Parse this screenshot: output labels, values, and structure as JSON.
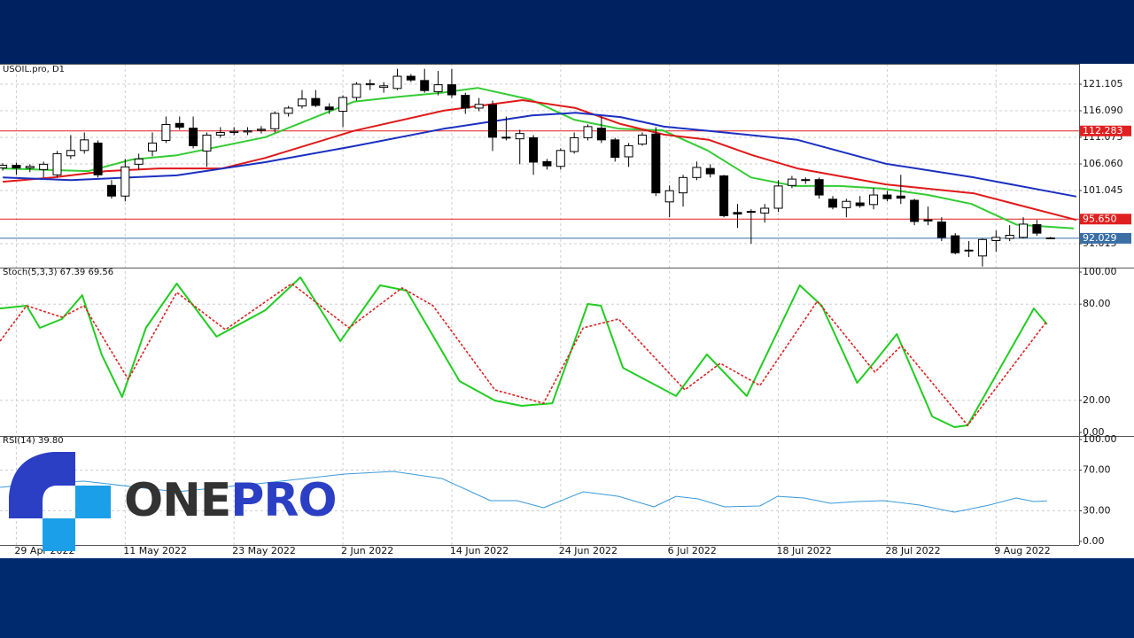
{
  "chart_data": {
    "type": "candlestick",
    "title": "USOIL.pro, D1",
    "categories": [
      null,
      "29 Apr 2022",
      null,
      null,
      null,
      null,
      null,
      null,
      null,
      "11 May 2022",
      null,
      null,
      null,
      null,
      null,
      null,
      null,
      "23 May 2022",
      null,
      null,
      null,
      null,
      null,
      null,
      null,
      "2 Jun 2022",
      null,
      null,
      null,
      null,
      null,
      null,
      null,
      "14 Jun 2022",
      null,
      null,
      null,
      null,
      null,
      null,
      null,
      "24 Jun 2022",
      null,
      null,
      null,
      null,
      null,
      null,
      null,
      "6 Jul 2022",
      null,
      null,
      null,
      null,
      null,
      null,
      null,
      "18 Jul 2022",
      null,
      null,
      null,
      null,
      null,
      null,
      null,
      "28 Jul 2022",
      null,
      null,
      null,
      null,
      null,
      null,
      null,
      "9 Aug 2022",
      null,
      null,
      null,
      null
    ],
    "open": [
      105.3,
      105.8,
      105.3,
      105.0,
      104.0,
      107.6,
      108.6,
      110.0,
      102.0,
      100.0,
      106.0,
      108.5,
      110.5,
      113.7,
      112.8,
      108.5,
      111.5,
      112.0,
      112.1,
      112.4,
      112.7,
      115.6,
      117.0,
      118.4,
      116.8,
      116.0,
      118.6,
      121.0,
      120.5,
      120.3,
      122.6,
      121.8,
      119.7,
      121.0,
      119.0,
      116.6,
      117.2,
      111.1,
      110.8,
      111.0,
      106.5,
      105.6,
      108.4,
      111.0,
      112.8,
      110.6,
      107.4,
      109.8,
      111.7,
      98.9,
      100.6,
      103.5,
      105.2,
      103.8,
      96.9,
      97.0,
      96.8,
      97.7,
      102.0,
      103.0,
      103.1,
      99.4,
      97.8,
      98.7,
      98.4,
      100.2,
      100.0,
      99.2,
      95.5,
      95.1,
      92.5,
      89.7,
      88.7,
      91.6,
      92.0,
      92.2,
      94.6,
      92.1
    ],
    "high": [
      106.2,
      106.3,
      106.0,
      106.5,
      108.5,
      111.5,
      112.0,
      110.5,
      103.0,
      107.0,
      108.0,
      112.0,
      115.0,
      115.0,
      115.0,
      112.0,
      113.0,
      113.0,
      113.0,
      113.2,
      116.0,
      117.0,
      120.0,
      120.0,
      117.5,
      119.0,
      121.5,
      122.0,
      121.5,
      124.0,
      123.0,
      124.0,
      123.6,
      124.0,
      119.5,
      118.5,
      118.0,
      115.0,
      112.5,
      111.5,
      107.0,
      109.0,
      112.0,
      113.5,
      115.0,
      111.0,
      110.0,
      112.0,
      113.0,
      102.0,
      104.0,
      106.5,
      106.0,
      104.0,
      98.5,
      97.5,
      98.5,
      103.0,
      103.8,
      103.5,
      103.5,
      100.0,
      99.5,
      100.0,
      101.5,
      101.0,
      104.0,
      99.5,
      98.0,
      96.0,
      93.0,
      91.5,
      92.0,
      93.5,
      94.5,
      96.0,
      95.5,
      92.3
    ],
    "low": [
      104.8,
      104.0,
      104.5,
      103.5,
      103.5,
      107.0,
      108.0,
      103.5,
      99.5,
      99.0,
      105.0,
      107.5,
      110.0,
      112.5,
      109.0,
      105.5,
      111.0,
      111.5,
      111.5,
      111.8,
      112.0,
      115.0,
      116.5,
      116.8,
      115.5,
      113.0,
      118.0,
      120.0,
      119.5,
      120.0,
      121.5,
      119.5,
      119.0,
      118.5,
      115.5,
      116.0,
      108.5,
      110.5,
      106.0,
      104.0,
      105.0,
      105.0,
      108.0,
      110.5,
      110.0,
      106.5,
      105.5,
      109.5,
      100.0,
      96.0,
      98.0,
      103.0,
      103.5,
      96.0,
      94.0,
      91.0,
      95.0,
      97.0,
      101.5,
      102.3,
      99.5,
      97.5,
      96.0,
      97.8,
      97.5,
      99.0,
      98.5,
      94.5,
      94.5,
      91.5,
      89.0,
      88.5,
      86.7,
      89.5,
      91.5,
      92.0,
      92.5,
      91.9
    ],
    "close": [
      105.8,
      105.3,
      105.6,
      106.0,
      108.0,
      108.6,
      110.6,
      104.0,
      100.0,
      105.5,
      107.0,
      110.0,
      113.5,
      113.0,
      109.5,
      111.5,
      112.0,
      112.2,
      112.3,
      112.6,
      115.6,
      116.6,
      118.3,
      117.1,
      116.3,
      118.6,
      121.1,
      121.2,
      120.8,
      122.6,
      121.9,
      119.9,
      121.0,
      119.1,
      116.6,
      117.3,
      111.1,
      111.0,
      111.8,
      106.4,
      105.7,
      108.6,
      111.0,
      113.1,
      110.6,
      107.3,
      109.5,
      111.5,
      100.6,
      101.0,
      103.5,
      105.4,
      104.2,
      96.3,
      96.6,
      97.1,
      97.7,
      101.9,
      103.2,
      103.1,
      100.2,
      97.9,
      99.0,
      98.2,
      100.2,
      99.5,
      99.6,
      95.2,
      95.3,
      92.2,
      89.3,
      89.8,
      91.8,
      92.2,
      92.6,
      94.7,
      93.0,
      92.029
    ],
    "up_color": "#ffffff",
    "down_color": "#000000",
    "xlim": [
      -0.2,
      79.1
    ],
    "ylim": [
      86.5,
      124.95
    ],
    "yticks": [
      {
        "value": 91.015,
        "label": "91.015"
      },
      {
        "value": 101.045,
        "label": "101.045"
      },
      {
        "value": 106.06,
        "label": "106.060"
      },
      {
        "value": 111.075,
        "label": "111.075"
      },
      {
        "value": 116.09,
        "label": "116.090"
      },
      {
        "value": 121.105,
        "label": "121.105"
      }
    ],
    "grid": true,
    "overlays": [
      {
        "color": "#33cc33",
        "x": [
          0,
          6.3,
          9.5,
          12.8,
          19.3,
          25.8,
          29,
          32.3,
          34.9,
          38.8,
          42,
          45.3,
          48.5,
          51.8,
          55,
          58.2,
          61.5,
          64.7,
          68,
          71.2,
          74.5,
          78.7
        ],
        "values": [
          105.2,
          104.7,
          106.9,
          107.7,
          111.1,
          117.8,
          118.7,
          119.5,
          120.4,
          118.2,
          114.4,
          112.7,
          112.4,
          108.6,
          103.5,
          101.9,
          101.9,
          101.4,
          100.2,
          98.5,
          94.6,
          93.9
        ]
      },
      {
        "color": "#e01818",
        "x": [
          0,
          3.7,
          7.6,
          11.5,
          16.1,
          19.3,
          25.8,
          32.4,
          38.2,
          42.1,
          45.4,
          48.6,
          51.9,
          55.1,
          58.4,
          64.9,
          71.4,
          78.9
        ],
        "values": [
          102.7,
          103.5,
          104.7,
          105.2,
          105.2,
          107.2,
          112.3,
          116.1,
          118.1,
          116.6,
          113.6,
          111.6,
          110.6,
          107.7,
          105.2,
          102.2,
          100.5,
          95.5
        ]
      },
      {
        "color": "#1a2fc0",
        "x": [
          0,
          5.0,
          12.8,
          19.3,
          25.8,
          32.4,
          38.9,
          42.1,
          45.4,
          48.6,
          51.9,
          58.4,
          64.9,
          71.4,
          78.9
        ],
        "values": [
          103.5,
          103.0,
          103.9,
          106.4,
          109.4,
          112.7,
          115.2,
          115.7,
          114.9,
          113.1,
          112.3,
          110.6,
          106.1,
          103.5,
          99.9
        ]
      }
    ],
    "levels": [
      {
        "value": 112.283,
        "color": "#e02020"
      },
      {
        "value": 95.65,
        "label": "95.650",
        "color": "#e02020"
      },
      {
        "value": 92.029,
        "color": "#3a6ea5"
      }
    ],
    "indicators": [
      {
        "title": "Stoch(5,3,3) 67.39 69.56",
        "ylim": [
          0,
          100
        ],
        "yticks": [
          {
            "value": 0,
            "label": "0.00"
          },
          {
            "value": 20,
            "label": "20.00"
          },
          {
            "value": 80,
            "label": "80.00"
          },
          {
            "value": 100,
            "label": "100.00"
          }
        ],
        "series": [
          {
            "color": "#22cc22",
            "dash": false,
            "x": [
              -0.2,
              1.75,
              2.73,
              4.35,
              5.84,
              7.27,
              8.77,
              10.52,
              12.79,
              15.71,
              19.29,
              21.88,
              24.81,
              27.73,
              29.68,
              33.57,
              36.17,
              38.12,
              40.39,
              43,
              43.96,
              45.58,
              49.48,
              51.75,
              54.68,
              58.57,
              60.19,
              62.79,
              64.09,
              65.71,
              68.31,
              69.94,
              70.91,
              75.78,
              76.75
            ],
            "values": [
              77.3,
              79,
              65.2,
              70.7,
              85.6,
              48.6,
              22.1,
              65.2,
              92.8,
              59.7,
              76.2,
              96.7,
              56.9,
              91.7,
              88.4,
              32,
              19.9,
              16.6,
              18.2,
              80.1,
              79,
              40.3,
              22.7,
              48.6,
              22.7,
              91.7,
              79,
              30.9,
              44.2,
              61.3,
              9.9,
              3.3,
              4.4,
              77.3,
              67.39
            ]
          },
          {
            "color": "#dd2222",
            "dash": true,
            "x": [
              -0.2,
              1.75,
              4.35,
              5.97,
              9.22,
              12.79,
              16.36,
              21.23,
              25.45,
              29.35,
              31.62,
              36.17,
              39.74,
              42.66,
              45.26,
              50.13,
              52.73,
              55.65,
              59.87,
              64.09,
              66.04,
              70.91,
              76.75
            ],
            "values": [
              56.9,
              79,
              71.8,
              79,
              33.1,
              87.3,
              64.1,
              92.8,
              65.2,
              90.1,
              79,
              26.5,
              18.2,
              65.2,
              70.7,
              26.5,
              43.1,
              29.3,
              81.8,
              37.6,
              54.1,
              4.4,
              69.56
            ]
          }
        ]
      },
      {
        "title": "RSI(14) 39.80",
        "ylim": [
          0,
          100
        ],
        "yticks": [
          {
            "value": 0,
            "label": "0.00"
          },
          {
            "value": 30,
            "label": "30.00"
          },
          {
            "value": 70,
            "label": "70.00"
          },
          {
            "value": 100,
            "label": "100.00"
          }
        ],
        "series": [
          {
            "color": "#3a9ad9",
            "dash": false,
            "x": [
              -0.2,
              3.05,
              5.97,
              12.79,
              19.29,
              25.13,
              28.7,
              32.27,
              35.84,
              37.79,
              39.74,
              42.66,
              45.26,
              47.86,
              49.48,
              51.1,
              53.05,
              55.65,
              56.95,
              58.9,
              60.84,
              62.79,
              64.74,
              67.34,
              69.94,
              72.53,
              74.48,
              75.78,
              76.75
            ],
            "values": [
              53,
              57.4,
              59.1,
              48.7,
              57.4,
              66.1,
              68.7,
              61.7,
              40,
              40,
              33,
              48.7,
              44.3,
              33.9,
              44.3,
              41.7,
              33.9,
              34.8,
              44.3,
              42.6,
              37.4,
              39.1,
              40,
              35.7,
              28.7,
              35.7,
              42.6,
              39.1,
              39.8
            ]
          }
        ]
      }
    ]
  },
  "logo": {
    "parts": [
      "ONE",
      "PRO"
    ]
  }
}
